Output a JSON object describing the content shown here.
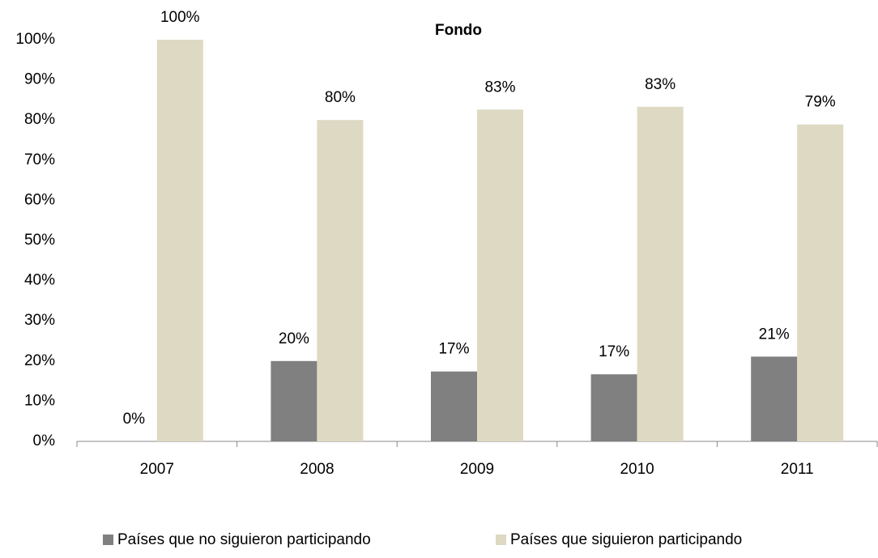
{
  "chart_data": {
    "type": "bar",
    "title": "Fondo",
    "categories": [
      "2007",
      "2008",
      "2009",
      "2010",
      "2011"
    ],
    "series": [
      {
        "name": "Países que no siguieron participando",
        "color": "#808080",
        "values": [
          0,
          20,
          17.4,
          16.7,
          21.1
        ],
        "value_labels": [
          "0%",
          "20%",
          "17%",
          "17%",
          "21%"
        ]
      },
      {
        "name": "Países que siguieron participando",
        "color": "#ddd9c3",
        "values": [
          100,
          80,
          82.6,
          83.3,
          78.9
        ],
        "value_labels": [
          "100%",
          "80%",
          "83%",
          "83%",
          "79%"
        ]
      }
    ],
    "ylim": [
      0,
      100
    ],
    "yticks": [
      {
        "value": 0,
        "label": "0%"
      },
      {
        "value": 10,
        "label": "10%"
      },
      {
        "value": 20,
        "label": "20%"
      },
      {
        "value": 30,
        "label": "30%"
      },
      {
        "value": 40,
        "label": "40%"
      },
      {
        "value": 50,
        "label": "50%"
      },
      {
        "value": 60,
        "label": "60%"
      },
      {
        "value": 70,
        "label": "70%"
      },
      {
        "value": 80,
        "label": "80%"
      },
      {
        "value": 90,
        "label": "90%"
      },
      {
        "value": 100,
        "label": "100%"
      }
    ],
    "grid": false,
    "legend": "bottom"
  }
}
